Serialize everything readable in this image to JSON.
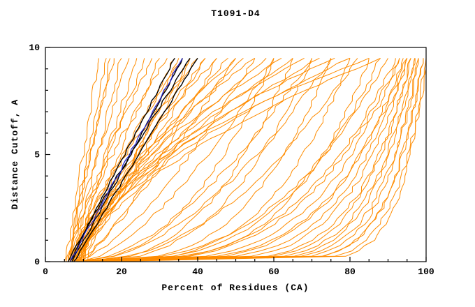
{
  "chart_data": {
    "type": "line",
    "title": "T1091-D4",
    "xlabel": "Percent of Residues (CA)",
    "ylabel": "Distance Cutoff, A",
    "xlim": [
      0,
      100
    ],
    "ylim": [
      0,
      10
    ],
    "x_ticks": [
      0,
      20,
      40,
      60,
      80,
      100
    ],
    "y_ticks": [
      0,
      5,
      10
    ],
    "x_minor_step": 5,
    "y_minor_step": 1,
    "grid": false,
    "legend": "none",
    "curve_top": 9.5,
    "colors": {
      "o": "#FF8C00",
      "k": "#000000",
      "b": "#2222CC"
    },
    "style": {
      "jitter": {
        "o": 1.2,
        "k": 0.55,
        "b": 0.55
      },
      "width": {
        "o": 1.0,
        "k": 1.4,
        "b": 1.2
      }
    },
    "series": [
      {
        "c": "o",
        "o": 5,
        "t": 14,
        "e": 1.0
      },
      {
        "c": "o",
        "o": 6,
        "t": 16,
        "e": 1.1
      },
      {
        "c": "o",
        "o": 5.5,
        "t": 17,
        "e": 0.95
      },
      {
        "c": "o",
        "o": 6,
        "t": 18,
        "e": 1.15
      },
      {
        "c": "o",
        "o": 7,
        "t": 20,
        "e": 1.05
      },
      {
        "c": "o",
        "o": 6.5,
        "t": 22,
        "e": 1.2
      },
      {
        "c": "o",
        "o": 7,
        "t": 24,
        "e": 1.0
      },
      {
        "c": "o",
        "o": 7.5,
        "t": 26,
        "e": 1.1
      },
      {
        "c": "o",
        "o": 6,
        "t": 28,
        "e": 1.2
      },
      {
        "c": "o",
        "o": 7,
        "t": 30,
        "e": 1.0
      },
      {
        "c": "o",
        "o": 6.5,
        "t": 32,
        "e": 1.3
      },
      {
        "c": "o",
        "o": 8,
        "t": 34,
        "e": 1.1
      },
      {
        "c": "o",
        "o": 7,
        "t": 36,
        "e": 1.25
      },
      {
        "c": "o",
        "o": 8,
        "t": 38,
        "e": 1.0
      },
      {
        "c": "o",
        "o": 7.5,
        "t": 40,
        "e": 1.35
      },
      {
        "c": "o",
        "o": 8,
        "t": 42,
        "e": 1.15
      },
      {
        "c": "o",
        "o": 7,
        "t": 45,
        "e": 1.3
      },
      {
        "c": "o",
        "o": 8.5,
        "t": 48,
        "e": 1.2
      },
      {
        "c": "o",
        "o": 9,
        "t": 50,
        "e": 1.4
      },
      {
        "c": "o",
        "o": 8,
        "t": 52,
        "e": 1.25
      },
      {
        "c": "o",
        "o": 8,
        "t": 55,
        "e": 1.5
      },
      {
        "c": "o",
        "o": 9,
        "t": 58,
        "e": 1.3
      },
      {
        "c": "o",
        "o": 8.5,
        "t": 62,
        "e": 1.6
      },
      {
        "c": "o",
        "o": 9,
        "t": 65,
        "e": 1.4
      },
      {
        "c": "o",
        "o": 10,
        "t": 68,
        "e": 1.7
      },
      {
        "c": "o",
        "o": 9,
        "t": 72,
        "e": 1.5
      },
      {
        "c": "o",
        "o": 10,
        "t": 76,
        "e": 1.8
      },
      {
        "c": "o",
        "o": 9.5,
        "t": 80,
        "e": 1.6
      },
      {
        "c": "o",
        "o": 10,
        "t": 85,
        "e": 1.9
      },
      {
        "c": "o",
        "o": 11,
        "t": 88,
        "e": 1.7
      },
      {
        "c": "o",
        "o": 7,
        "t": 35,
        "e": 0.8
      },
      {
        "c": "o",
        "o": 8,
        "t": 45,
        "e": 0.75
      },
      {
        "c": "o",
        "o": 8,
        "t": 55,
        "e": 0.7
      },
      {
        "c": "o",
        "o": 9,
        "t": 50,
        "e": 0.85
      },
      {
        "c": "o",
        "o": 7,
        "t": 42,
        "e": 0.9
      },
      {
        "c": "o",
        "o": 8,
        "t": 38,
        "e": 0.85
      },
      {
        "c": "o",
        "o": 9,
        "t": 60,
        "e": 0.65
      },
      {
        "c": "o",
        "o": 10,
        "t": 70,
        "e": 0.6
      },
      {
        "c": "o",
        "o": 9,
        "t": 75,
        "e": 0.55
      },
      {
        "c": "o",
        "o": 10,
        "t": 82,
        "e": 0.5
      },
      {
        "c": "o",
        "o": 8,
        "t": 60,
        "e": 0.45
      },
      {
        "c": "o",
        "o": 9,
        "t": 65,
        "e": 0.4
      },
      {
        "c": "o",
        "o": 9,
        "t": 70,
        "e": 0.38
      },
      {
        "c": "o",
        "o": 10,
        "t": 75,
        "e": 0.33
      },
      {
        "c": "o",
        "o": 10,
        "t": 80,
        "e": 0.3
      },
      {
        "c": "o",
        "o": 11,
        "t": 85,
        "e": 0.28
      },
      {
        "c": "o",
        "o": 9,
        "t": 88,
        "e": 0.32
      },
      {
        "c": "o",
        "o": 7,
        "t": 90,
        "e": 0.35
      },
      {
        "c": "o",
        "o": 8,
        "t": 92,
        "e": 0.3
      },
      {
        "c": "o",
        "o": 8,
        "t": 93,
        "e": 0.25
      },
      {
        "c": "o",
        "o": 9,
        "t": 94,
        "e": 0.22
      },
      {
        "c": "o",
        "o": 9,
        "t": 95,
        "e": 0.2
      },
      {
        "c": "o",
        "o": 10,
        "t": 95,
        "e": 0.18
      },
      {
        "c": "o",
        "o": 10,
        "t": 96,
        "e": 0.16
      },
      {
        "c": "o",
        "o": 11,
        "t": 96,
        "e": 0.15
      },
      {
        "c": "o",
        "o": 11,
        "t": 97,
        "e": 0.14
      },
      {
        "c": "o",
        "o": 12,
        "t": 97,
        "e": 0.13
      },
      {
        "c": "o",
        "o": 12,
        "t": 98,
        "e": 0.12
      },
      {
        "c": "o",
        "o": 13,
        "t": 98,
        "e": 0.11
      },
      {
        "c": "o",
        "o": 13,
        "t": 99,
        "e": 0.1
      },
      {
        "c": "o",
        "o": 14,
        "t": 99,
        "e": 0.1
      },
      {
        "c": "o",
        "o": 14,
        "t": 100,
        "e": 0.09
      },
      {
        "c": "o",
        "o": 15,
        "t": 100,
        "e": 0.08
      },
      {
        "c": "o",
        "o": 12,
        "t": 95,
        "e": 0.25
      },
      {
        "c": "o",
        "o": 10,
        "t": 93,
        "e": 0.3
      },
      {
        "c": "k",
        "o": 6.5,
        "t": 34,
        "e": 1.02,
        "ymax": 9.6
      },
      {
        "c": "k",
        "o": 7,
        "t": 36,
        "e": 0.98,
        "ymax": 9.6
      },
      {
        "c": "k",
        "o": 6,
        "t": 38,
        "e": 1.05,
        "ymax": 9.6
      },
      {
        "c": "k",
        "o": 7.5,
        "t": 40,
        "e": 1.0,
        "ymax": 9.6
      },
      {
        "c": "b",
        "o": 6.5,
        "t": 36,
        "e": 1.0,
        "ymax": 9.6
      }
    ]
  }
}
